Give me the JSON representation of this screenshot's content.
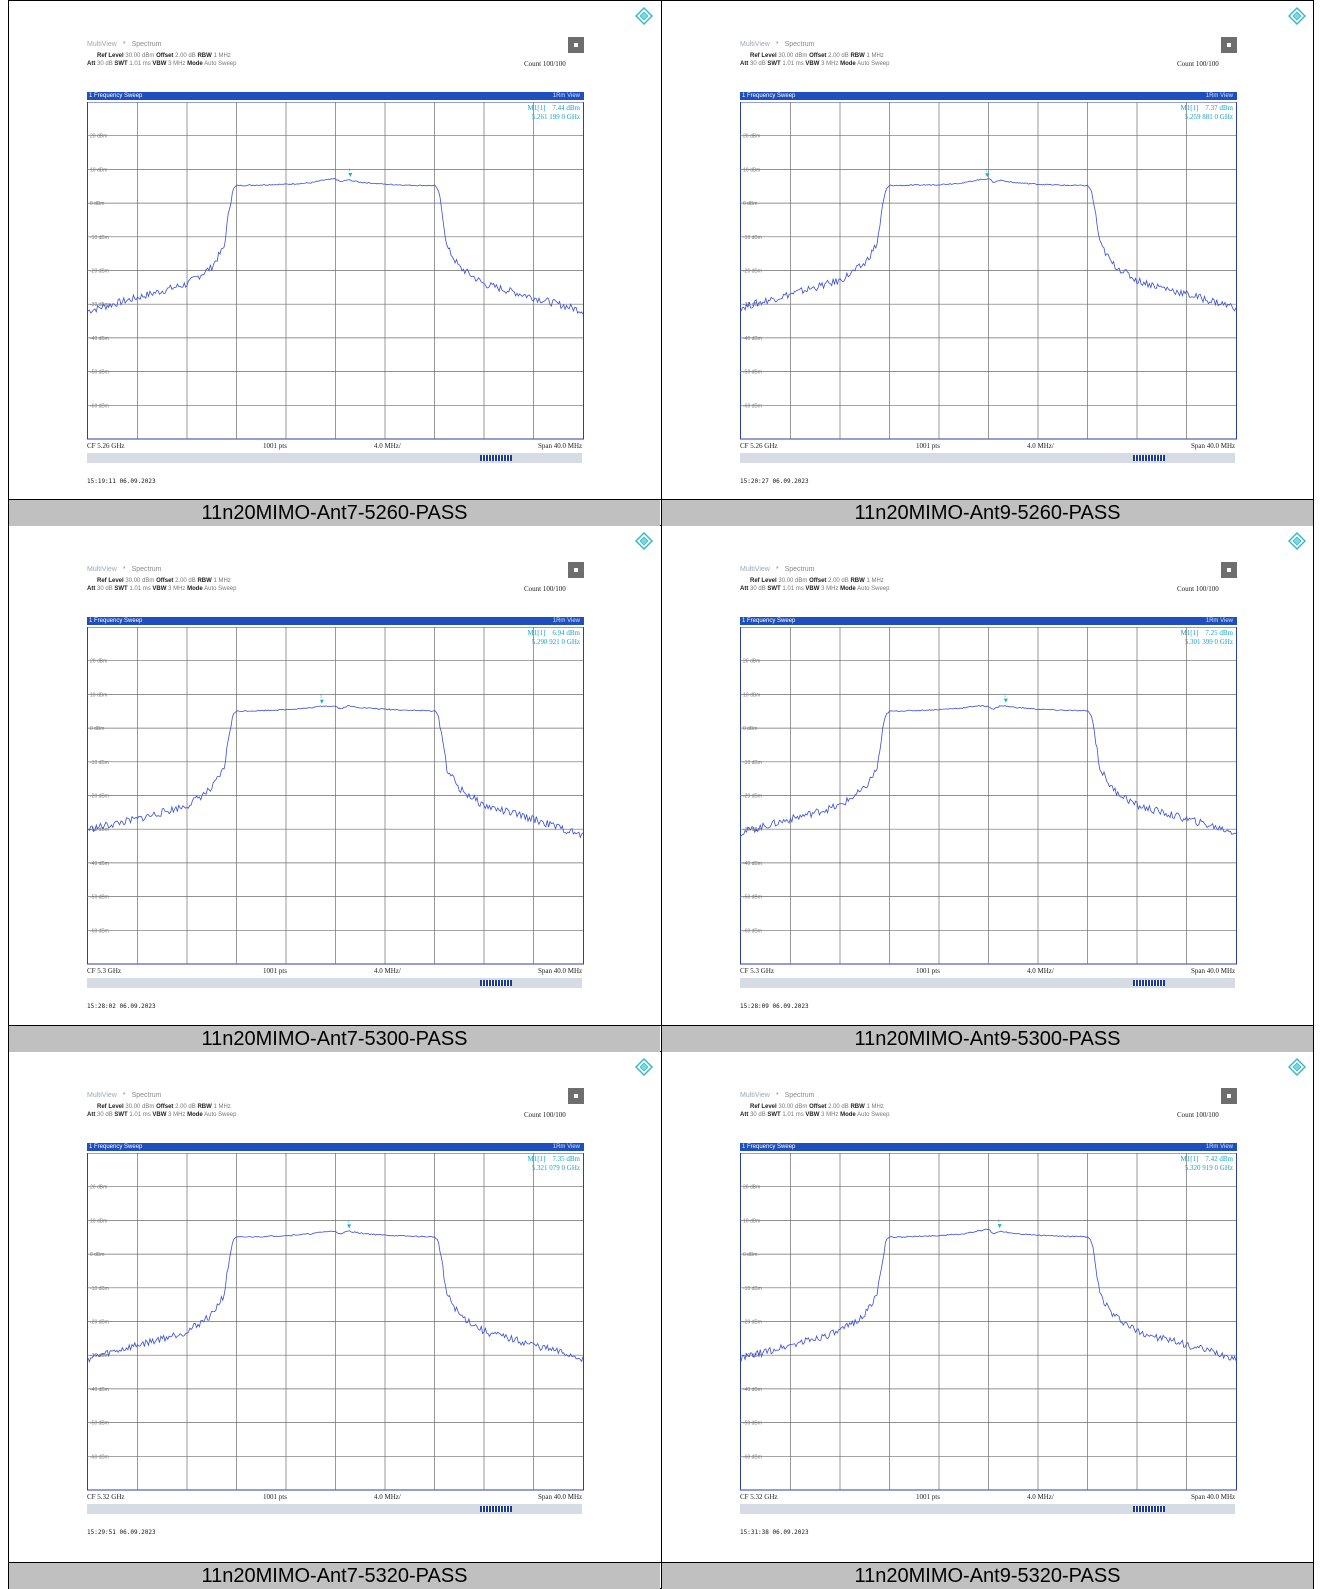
{
  "colors": {
    "trace": "#3a4fd8",
    "marker": "#19b3c4",
    "grid": "#6e6e6e",
    "caption_bg": "#c0c0c0",
    "header_band": "#1f4fbf"
  },
  "icons": {
    "logo": "rohde-schwarz-diamond-icon",
    "close": "close-icon"
  },
  "instrument": {
    "tab_multiview": "MultiView",
    "tab_spectrum": "Spectrum",
    "ref_level_label": "Ref Level",
    "ref_level_value": "30.00 dBm",
    "offset_label": "Offset",
    "offset_value": "2.00 dB",
    "rbw_label": "RBW",
    "rbw_value": "1 MHz",
    "att_label": "Att",
    "att_value": "30 dB",
    "swt_label": "SWT",
    "swt_value": "1.01 ms",
    "vbw_label": "VBW",
    "vbw_value": "3 MHz",
    "mode_label": "Mode",
    "mode_value": "Auto Sweep",
    "count": "Count 100/100",
    "trace_title": "1 Frequency Sweep",
    "trace_mode": "1Rm View",
    "points": "1001 pts",
    "div": "4.0 MHz/",
    "span": "Span 40.0 MHz"
  },
  "chart_data": [
    {
      "type": "line",
      "caption": "11n20MIMO-Ant7-5260-PASS",
      "cf": "CF 5.26 GHz",
      "marker_label": "M1[1]",
      "marker_level": "7.44 dBm",
      "marker_freq": "5.261 199 0 GHz",
      "timestamp": "15:19:11  06.09.2023",
      "ylim": [
        -70,
        30
      ],
      "y_ticks": [
        "20 dBm",
        "10 dBm",
        "0 dBm",
        "-10 dBm",
        "-20 dBm",
        "-30 dBm",
        "-40 dBm",
        "-50 dBm",
        "-60 dBm"
      ],
      "x": [
        -20,
        -16,
        -12,
        -10,
        -9,
        -8.6,
        -8.3,
        -8,
        -6,
        -4,
        -2,
        -1,
        0,
        0.4,
        1,
        2,
        4,
        6,
        8,
        8.3,
        8.6,
        9,
        10,
        12,
        16,
        20
      ],
      "y": [
        -32,
        -28,
        -24,
        -19,
        -13,
        -2,
        4,
        5.2,
        5.4,
        5.6,
        6,
        6.8,
        7.2,
        6.3,
        6.9,
        6.2,
        5.6,
        5.3,
        5.2,
        4,
        -2,
        -13,
        -19,
        -24,
        -28,
        -32
      ],
      "marker_x": 1.2,
      "marker_y": 7.44
    },
    {
      "type": "line",
      "caption": "11n20MIMO-Ant9-5260-PASS",
      "cf": "CF 5.26 GHz",
      "marker_label": "M1[1]",
      "marker_level": "7.37 dBm",
      "marker_freq": "5.259 881 0 GHz",
      "timestamp": "15:20:27  06.09.2023",
      "ylim": [
        -70,
        30
      ],
      "y_ticks": [
        "20 dBm",
        "10 dBm",
        "0 dBm",
        "-10 dBm",
        "-20 dBm",
        "-30 dBm",
        "-40 dBm",
        "-50 dBm",
        "-60 dBm"
      ],
      "x": [
        -20,
        -16,
        -12,
        -10,
        -9,
        -8.6,
        -8.3,
        -8,
        -6,
        -4,
        -2,
        -1,
        0,
        0.4,
        1,
        2,
        4,
        6,
        8,
        8.3,
        8.6,
        9,
        10,
        12,
        16,
        20
      ],
      "y": [
        -31,
        -27,
        -23,
        -18,
        -12,
        -2,
        4,
        5.2,
        5.3,
        5.5,
        6,
        6.8,
        7.3,
        6.2,
        6.8,
        6.1,
        5.6,
        5.3,
        5.2,
        4,
        -2,
        -12,
        -18,
        -23,
        -27,
        -31
      ],
      "marker_x": -0.1,
      "marker_y": 7.37
    },
    {
      "type": "line",
      "caption": "11n20MIMO-Ant7-5300-PASS",
      "cf": "CF 5.3 GHz",
      "marker_label": "M1[1]",
      "marker_level": "6.94 dBm",
      "marker_freq": "5.298 921 0 GHz",
      "timestamp": "15:28:02  06.09.2023",
      "ylim": [
        -70,
        30
      ],
      "y_ticks": [
        "20 dBm",
        "10 dBm",
        "0 dBm",
        "-10 dBm",
        "-20 dBm",
        "-30 dBm",
        "-40 dBm",
        "-50 dBm",
        "-60 dBm"
      ],
      "x": [
        -20,
        -16,
        -12,
        -10,
        -9,
        -8.6,
        -8.3,
        -8,
        -6,
        -4,
        -2,
        -1,
        0,
        0.4,
        1,
        2,
        4,
        6,
        8,
        8.3,
        8.6,
        9,
        10,
        12,
        16,
        20
      ],
      "y": [
        -30,
        -27,
        -23,
        -18,
        -12,
        -2,
        4,
        5,
        5.2,
        5.5,
        6,
        6.6,
        6.5,
        5.7,
        6.6,
        6.1,
        5.6,
        5.3,
        5.1,
        4,
        -2,
        -12,
        -18,
        -23,
        -27,
        -32
      ],
      "marker_x": -1.1,
      "marker_y": 6.94
    },
    {
      "type": "line",
      "caption": "11n20MIMO-Ant9-5300-PASS",
      "cf": "CF 5.3 GHz",
      "marker_label": "M1[1]",
      "marker_level": "7.25 dBm",
      "marker_freq": "5.301 399 0 GHz",
      "timestamp": "15:28:09  06.09.2023",
      "ylim": [
        -70,
        30
      ],
      "y_ticks": [
        "20 dBm",
        "10 dBm",
        "0 dBm",
        "-10 dBm",
        "-20 dBm",
        "-30 dBm",
        "-40 dBm",
        "-50 dBm",
        "-60 dBm"
      ],
      "x": [
        -20,
        -16,
        -12,
        -10,
        -9,
        -8.6,
        -8.3,
        -8,
        -6,
        -4,
        -2,
        -1,
        0,
        0.4,
        1,
        2,
        4,
        6,
        8,
        8.3,
        8.6,
        9,
        10,
        12,
        16,
        20
      ],
      "y": [
        -31,
        -27,
        -23,
        -18,
        -12,
        -2,
        4,
        5,
        5.2,
        5.5,
        6,
        6.6,
        6.4,
        5.6,
        6.7,
        6.2,
        5.6,
        5.3,
        5.1,
        4,
        -2,
        -12,
        -18,
        -23,
        -27,
        -31
      ],
      "marker_x": 1.4,
      "marker_y": 7.25
    },
    {
      "type": "line",
      "caption": "11n20MIMO-Ant7-5320-PASS",
      "cf": "CF 5.32 GHz",
      "marker_label": "M1[1]",
      "marker_level": "7.35 dBm",
      "marker_freq": "5.321 079 0 GHz",
      "timestamp": "15:29:51  06.09.2023",
      "ylim": [
        -70,
        30
      ],
      "y_ticks": [
        "20 dBm",
        "10 dBm",
        "0 dBm",
        "-10 dBm",
        "-20 dBm",
        "-30 dBm",
        "-40 dBm",
        "-50 dBm",
        "-60 dBm"
      ],
      "x": [
        -20,
        -16,
        -12,
        -10,
        -9,
        -8.6,
        -8.3,
        -8,
        -6,
        -4,
        -2,
        -1,
        0,
        0.4,
        1,
        2,
        4,
        6,
        8,
        8.3,
        8.6,
        9,
        10,
        12,
        16,
        20
      ],
      "y": [
        -31,
        -27,
        -23,
        -18,
        -12,
        -2,
        4,
        5,
        5.2,
        5.5,
        6,
        6.6,
        6.8,
        5.8,
        6.9,
        6.2,
        5.6,
        5.3,
        5.1,
        4,
        -2,
        -12,
        -18,
        -23,
        -27,
        -31
      ],
      "marker_x": 1.1,
      "marker_y": 7.35
    },
    {
      "type": "line",
      "caption": "11n20MIMO-Ant9-5320-PASS",
      "cf": "CF 5.32 GHz",
      "marker_label": "M1[1]",
      "marker_level": "7.42 dBm",
      "marker_freq": "5.320 919 0 GHz",
      "timestamp": "15:31:38  06.09.2023",
      "ylim": [
        -70,
        30
      ],
      "y_ticks": [
        "20 dBm",
        "10 dBm",
        "0 dBm",
        "-10 dBm",
        "-20 dBm",
        "-30 dBm",
        "-40 dBm",
        "-50 dBm",
        "-60 dBm"
      ],
      "x": [
        -20,
        -16,
        -12,
        -10,
        -9,
        -8.6,
        -8.3,
        -8,
        -6,
        -4,
        -2,
        -1,
        0,
        0.4,
        1,
        2,
        4,
        6,
        8,
        8.3,
        8.6,
        9,
        10,
        12,
        16,
        20
      ],
      "y": [
        -31,
        -27,
        -23,
        -18,
        -12,
        -2,
        4,
        5,
        5.2,
        5.5,
        6,
        6.7,
        7.4,
        6.0,
        6.8,
        6.2,
        5.6,
        5.3,
        5.1,
        4,
        -2,
        -12,
        -18,
        -23,
        -27,
        -31
      ],
      "marker_x": 0.9,
      "marker_y": 7.42
    }
  ]
}
